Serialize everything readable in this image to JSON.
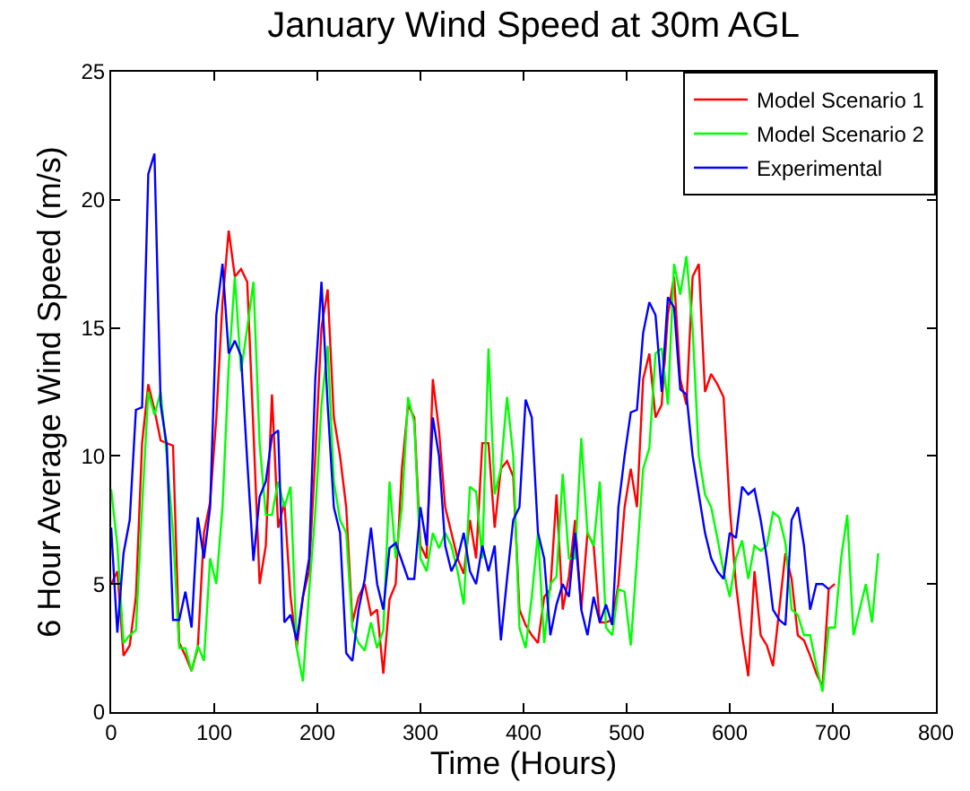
{
  "chart_data": {
    "type": "line",
    "title": "January Wind Speed at 30m AGL",
    "xlabel": "Time (Hours)",
    "ylabel": "6 Hour Average Wind Speed (m/s)",
    "xlim": [
      0,
      800
    ],
    "xticks": [
      0,
      100,
      200,
      300,
      400,
      500,
      600,
      700,
      800
    ],
    "ylim": [
      0,
      25
    ],
    "yticks": [
      0,
      5,
      10,
      15,
      20,
      25
    ],
    "grid": false,
    "legend": "top right",
    "marker": "none",
    "line_style": "solid",
    "series": [
      {
        "name": "Model Scenario 1",
        "color": "#ff0000",
        "x": [
          0,
          6,
          12,
          18,
          24,
          30,
          36,
          42,
          48,
          54,
          60,
          66,
          72,
          78,
          84,
          90,
          96,
          102,
          108,
          114,
          120,
          126,
          132,
          138,
          144,
          150,
          156,
          162,
          168,
          174,
          180,
          186,
          192,
          198,
          204,
          210,
          216,
          222,
          228,
          234,
          240,
          246,
          252,
          258,
          264,
          270,
          276,
          282,
          288,
          294,
          300,
          306,
          312,
          318,
          324,
          330,
          336,
          342,
          348,
          354,
          360,
          366,
          372,
          378,
          384,
          390,
          396,
          402,
          408,
          414,
          420,
          426,
          432,
          438,
          444,
          450,
          456,
          462,
          468,
          474,
          480,
          486,
          492,
          498,
          504,
          510,
          516,
          522,
          528,
          534,
          540,
          546,
          552,
          558,
          564,
          570,
          576,
          582,
          588,
          594,
          600,
          606,
          612,
          618,
          624,
          630,
          636,
          642,
          648,
          654,
          660,
          666,
          672,
          678,
          684,
          690,
          696,
          702
        ],
        "values": [
          5,
          5.5,
          2.2,
          2.6,
          4.5,
          10.5,
          12.8,
          11.8,
          10.6,
          10.5,
          10.4,
          2.7,
          2.2,
          1.6,
          2.5,
          7,
          8.2,
          11.5,
          16,
          18.8,
          17,
          17.3,
          16.8,
          11,
          5,
          6.5,
          12.4,
          7.2,
          8.2,
          4.5,
          2.5,
          4.5,
          5.5,
          10,
          15,
          16.5,
          11.5,
          10,
          8,
          3.5,
          4.5,
          5,
          3.8,
          4,
          1.5,
          4.4,
          5,
          9.5,
          12,
          11.5,
          6.5,
          6,
          13,
          11,
          8,
          7,
          6,
          5.4,
          7.5,
          6,
          10.5,
          10.5,
          7.2,
          9.5,
          9.8,
          9.2,
          4,
          3.4,
          3,
          2.7,
          4.5,
          4.8,
          8.5,
          4,
          5.3,
          7.5,
          4,
          7,
          6.5,
          3.5,
          3.5,
          3.6,
          5,
          8,
          9.5,
          8,
          13,
          14,
          11.5,
          12,
          15.5,
          17,
          13,
          12,
          17,
          17.5,
          12.5,
          13.2,
          12.8,
          12.3,
          8,
          5,
          3,
          1.4,
          5.5,
          3,
          2.6,
          1.8,
          4,
          6.2,
          5.2,
          3,
          2.8,
          2.2,
          1.5,
          1,
          4.8,
          5
        ]
      },
      {
        "name": "Model Scenario 2",
        "color": "#00ff00",
        "x": [
          0,
          6,
          12,
          18,
          24,
          30,
          36,
          42,
          48,
          54,
          60,
          66,
          72,
          78,
          84,
          90,
          96,
          102,
          108,
          114,
          120,
          126,
          132,
          138,
          144,
          150,
          156,
          162,
          168,
          174,
          180,
          186,
          192,
          198,
          204,
          210,
          216,
          222,
          228,
          234,
          240,
          246,
          252,
          258,
          264,
          270,
          276,
          282,
          288,
          294,
          300,
          306,
          312,
          318,
          324,
          330,
          336,
          342,
          348,
          354,
          360,
          366,
          372,
          378,
          384,
          390,
          396,
          402,
          408,
          414,
          420,
          426,
          432,
          438,
          444,
          450,
          456,
          462,
          468,
          474,
          480,
          486,
          492,
          498,
          504,
          510,
          516,
          522,
          528,
          534,
          540,
          546,
          552,
          558,
          564,
          570,
          576,
          582,
          588,
          594,
          600,
          606,
          612,
          618,
          624,
          630,
          636,
          642,
          648,
          654,
          660,
          666,
          672,
          678,
          684,
          690,
          696,
          702,
          708,
          714,
          720,
          726,
          732,
          738,
          744
        ],
        "values": [
          8.7,
          6.5,
          2.7,
          3,
          3.2,
          8,
          12.5,
          11.6,
          12.5,
          10,
          7,
          2.5,
          2.5,
          1.6,
          2.6,
          2,
          6,
          5,
          8,
          13.5,
          17,
          13.3,
          15,
          16.8,
          10.5,
          7.7,
          7.7,
          9,
          8,
          8.8,
          2.5,
          1.2,
          4.7,
          7.8,
          12,
          14.3,
          9,
          7.5,
          7,
          3.3,
          2.7,
          2.4,
          3.5,
          2.5,
          3.2,
          9,
          6,
          8,
          12.3,
          11.3,
          6,
          5.5,
          7,
          6.4,
          7,
          6.5,
          5.5,
          4.2,
          8.8,
          8.6,
          6,
          14.2,
          8.5,
          9.5,
          12.3,
          10,
          3.3,
          2.5,
          4.5,
          7,
          2.7,
          5,
          5.3,
          9.3,
          6,
          6,
          10.7,
          7,
          6.5,
          9,
          3.3,
          3,
          4.8,
          4.7,
          2.6,
          6,
          9.5,
          10.3,
          14,
          14.2,
          12,
          17.5,
          16.3,
          17.8,
          15,
          10,
          8.5,
          8,
          6.8,
          5.5,
          4.5,
          6,
          6.7,
          5.2,
          6.5,
          6.3,
          6.5,
          7.8,
          7.6,
          6.6,
          4,
          3.8,
          3,
          3,
          1.8,
          0.8,
          3.3,
          3.3,
          6,
          7.7,
          3,
          4,
          5,
          3.5,
          6.2
        ]
      },
      {
        "name": "Experimental",
        "color": "#0000ff",
        "x": [
          0,
          6,
          12,
          18,
          24,
          30,
          36,
          42,
          48,
          54,
          60,
          66,
          72,
          78,
          84,
          90,
          96,
          102,
          108,
          114,
          120,
          126,
          132,
          138,
          144,
          150,
          156,
          162,
          168,
          174,
          180,
          186,
          192,
          198,
          204,
          210,
          216,
          222,
          228,
          234,
          240,
          246,
          252,
          258,
          264,
          270,
          276,
          282,
          288,
          294,
          300,
          306,
          312,
          318,
          324,
          330,
          336,
          342,
          348,
          354,
          360,
          366,
          372,
          378,
          384,
          390,
          396,
          402,
          408,
          414,
          420,
          426,
          432,
          438,
          444,
          450,
          456,
          462,
          468,
          474,
          480,
          486,
          492,
          498,
          504,
          510,
          516,
          522,
          528,
          534,
          540,
          546,
          552,
          558,
          564,
          570,
          576,
          582,
          588,
          594,
          600,
          606,
          612,
          618,
          624,
          630,
          636,
          642,
          648,
          654,
          660,
          666,
          672,
          678,
          684,
          690,
          696
        ],
        "values": [
          7.2,
          3.1,
          6.2,
          7.5,
          11.8,
          11.9,
          21,
          21.8,
          12,
          10.4,
          3.6,
          3.6,
          4.7,
          3.3,
          7.6,
          6,
          8,
          15.5,
          17.5,
          14,
          14.5,
          13.9,
          9.8,
          5.9,
          8.4,
          9,
          10.8,
          11,
          3.5,
          3.8,
          2.8,
          4.5,
          6,
          13,
          16.8,
          12,
          8,
          7,
          2.3,
          2,
          4,
          5.2,
          7.2,
          5,
          4,
          6.4,
          6.6,
          5.9,
          5.2,
          5.2,
          8,
          6.5,
          11.5,
          10,
          6.5,
          5.5,
          6,
          7,
          5.5,
          5,
          6.5,
          5.5,
          6.5,
          2.8,
          5.2,
          7.5,
          8,
          12.2,
          11.5,
          7,
          6,
          3,
          4.2,
          5,
          4.5,
          7,
          4,
          3,
          4.5,
          3.5,
          4.2,
          3.4,
          8,
          10,
          11.7,
          11.8,
          14.8,
          16,
          15.5,
          12.5,
          16.2,
          15.8,
          12.6,
          12.4,
          10,
          8.5,
          7,
          6,
          5.5,
          5.2,
          7,
          6.8,
          8.8,
          8.5,
          8.7,
          7.5,
          6,
          4,
          3.6,
          3.4,
          7.5,
          8,
          6.5,
          4,
          5,
          5,
          4.8
        ]
      }
    ]
  }
}
